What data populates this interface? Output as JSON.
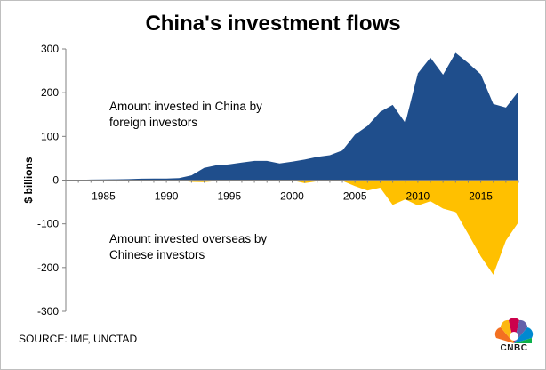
{
  "chart_data": {
    "type": "area",
    "title": "China's investment flows",
    "ylabel": "$ billions",
    "xlabel": "",
    "ylim": [
      -300,
      300
    ],
    "xlim": [
      1982,
      2018
    ],
    "yticks": [
      300,
      200,
      100,
      0,
      -100,
      -200,
      -300
    ],
    "xticks": [
      1985,
      1990,
      1995,
      2000,
      2005,
      2010,
      2015
    ],
    "grid": false,
    "series": [
      {
        "name": "Amount invested in China by foreign investors",
        "color": "#1f4e8c",
        "x": [
          1982,
          1983,
          1984,
          1985,
          1986,
          1987,
          1988,
          1989,
          1990,
          1991,
          1992,
          1993,
          1994,
          1995,
          1996,
          1997,
          1998,
          1999,
          2000,
          2001,
          2002,
          2003,
          2004,
          2005,
          2006,
          2007,
          2008,
          2009,
          2010,
          2011,
          2012,
          2013,
          2014,
          2015,
          2016,
          2017,
          2018
        ],
        "values": [
          0.4,
          0.6,
          1.3,
          1.7,
          1.9,
          2.3,
          3.2,
          3.4,
          3.5,
          4.4,
          11,
          28,
          34,
          36,
          40,
          44,
          44,
          38,
          42,
          47,
          53,
          57,
          68,
          104,
          124,
          156,
          172,
          131,
          244,
          280,
          241,
          291,
          268,
          242,
          174,
          166,
          203
        ]
      },
      {
        "name": "Amount invested overseas by Chinese investors",
        "color": "#ffc000",
        "x": [
          1982,
          1983,
          1984,
          1985,
          1986,
          1987,
          1988,
          1989,
          1990,
          1991,
          1992,
          1993,
          1994,
          1995,
          1996,
          1997,
          1998,
          1999,
          2000,
          2001,
          2002,
          2003,
          2004,
          2005,
          2006,
          2007,
          2008,
          2009,
          2010,
          2011,
          2012,
          2013,
          2014,
          2015,
          2016,
          2017,
          2018
        ],
        "values": [
          -0.1,
          -0.1,
          -0.1,
          -0.6,
          -0.5,
          -0.6,
          -0.8,
          -0.8,
          -0.8,
          -0.9,
          -4,
          -4.4,
          -2,
          -2,
          -2.1,
          -2.6,
          -2.6,
          -1.8,
          -0.9,
          -7,
          -2.5,
          -2.8,
          -1.8,
          -13.7,
          -23.9,
          -17.2,
          -56.7,
          -43.9,
          -58,
          -48.4,
          -65,
          -73,
          -123,
          -174.4,
          -216.4,
          -138.3,
          -96.5
        ]
      }
    ],
    "annotations": [
      {
        "text_lines": [
          "Amount invested in China by",
          "foreign investors"
        ]
      },
      {
        "text_lines": [
          "Amount invested overseas by",
          "Chinese investors"
        ]
      }
    ],
    "source": "SOURCE: IMF, UNCTAD"
  },
  "logo": {
    "text": "CNBC"
  }
}
